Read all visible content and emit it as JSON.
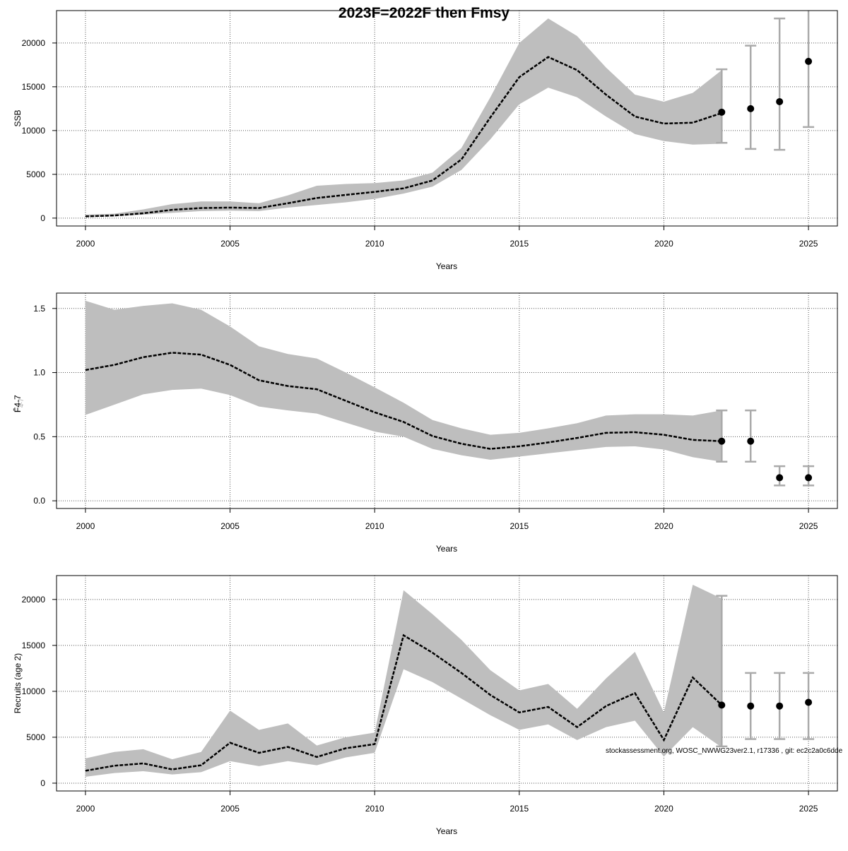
{
  "title": "2023F=2022F then Fmsy",
  "footnote": "stockassessment.org, WOSC_NWWG23ver2.1, r17336 , git: ec2c2a0c6dde",
  "chart_data": [
    {
      "type": "line",
      "ylabel": "SSB",
      "xlabel": "Years",
      "xlim": [
        1999,
        2026
      ],
      "ylim": [
        -900,
        23700
      ],
      "xticks": [
        2000,
        2005,
        2010,
        2015,
        2020,
        2025
      ],
      "yticks": [
        0,
        5000,
        10000,
        15000,
        20000
      ],
      "x": [
        2000,
        2001,
        2002,
        2003,
        2004,
        2005,
        2006,
        2007,
        2008,
        2009,
        2010,
        2011,
        2012,
        2013,
        2014,
        2015,
        2016,
        2017,
        2018,
        2019,
        2020,
        2021,
        2022
      ],
      "estimate": [
        200,
        300,
        550,
        950,
        1150,
        1200,
        1150,
        1700,
        2300,
        2650,
        3000,
        3400,
        4300,
        6700,
        11500,
        16100,
        18400,
        16900,
        14100,
        11600,
        10800,
        10900,
        12000
      ],
      "lower": [
        100,
        200,
        400,
        600,
        800,
        850,
        800,
        1200,
        1500,
        1800,
        2200,
        2800,
        3600,
        5500,
        9000,
        13000,
        14900,
        13800,
        11600,
        9600,
        8800,
        8400,
        8500
      ],
      "upper": [
        400,
        500,
        1000,
        1600,
        1900,
        1900,
        1700,
        2600,
        3700,
        3900,
        4000,
        4300,
        5200,
        8000,
        13800,
        20000,
        22800,
        20800,
        17200,
        14100,
        13300,
        14300,
        16900
      ],
      "forecast": [
        {
          "year": 2022,
          "value": 12100,
          "low": 8600,
          "high": 17000
        },
        {
          "year": 2023,
          "value": 12500,
          "low": 7900,
          "high": 19700
        },
        {
          "year": 2024,
          "value": 13300,
          "low": 7800,
          "high": 22800
        },
        {
          "year": 2025,
          "value": 17900,
          "low": 10400,
          "high": 25000
        }
      ]
    },
    {
      "type": "line",
      "ylabel": "F̄4-7",
      "ylabel_main": "F",
      "ylabel_sub": "4-7",
      "xlabel": "Years",
      "xlim": [
        1999,
        2026
      ],
      "ylim": [
        -0.06,
        1.62
      ],
      "xticks": [
        2000,
        2005,
        2010,
        2015,
        2020,
        2025
      ],
      "yticks": [
        0.0,
        0.5,
        1.0,
        1.5
      ],
      "ytick_labels": [
        "0.0",
        "0.5",
        "1.0",
        "1.5"
      ],
      "x": [
        2000,
        2001,
        2002,
        2003,
        2004,
        2005,
        2006,
        2007,
        2008,
        2009,
        2010,
        2011,
        2012,
        2013,
        2014,
        2015,
        2016,
        2017,
        2018,
        2019,
        2020,
        2021,
        2022
      ],
      "estimate": [
        1.02,
        1.06,
        1.12,
        1.155,
        1.14,
        1.06,
        0.94,
        0.895,
        0.87,
        0.78,
        0.69,
        0.615,
        0.505,
        0.445,
        0.405,
        0.425,
        0.455,
        0.49,
        0.53,
        0.535,
        0.515,
        0.475,
        0.465
      ],
      "lower": [
        0.67,
        0.75,
        0.83,
        0.865,
        0.875,
        0.825,
        0.735,
        0.705,
        0.68,
        0.61,
        0.54,
        0.5,
        0.405,
        0.355,
        0.32,
        0.345,
        0.37,
        0.395,
        0.42,
        0.425,
        0.4,
        0.34,
        0.305
      ],
      "upper": [
        1.56,
        1.49,
        1.52,
        1.54,
        1.49,
        1.36,
        1.205,
        1.145,
        1.11,
        1.0,
        0.885,
        0.765,
        0.63,
        0.565,
        0.515,
        0.53,
        0.565,
        0.605,
        0.665,
        0.675,
        0.675,
        0.665,
        0.705
      ],
      "forecast": [
        {
          "year": 2022,
          "value": 0.465,
          "low": 0.305,
          "high": 0.705
        },
        {
          "year": 2023,
          "value": 0.465,
          "low": 0.305,
          "high": 0.705
        },
        {
          "year": 2024,
          "value": 0.18,
          "low": 0.12,
          "high": 0.27
        },
        {
          "year": 2025,
          "value": 0.18,
          "low": 0.12,
          "high": 0.27
        }
      ]
    },
    {
      "type": "line",
      "ylabel": "Recruits (age 2)",
      "xlabel": "Years",
      "xlim": [
        1999,
        2026
      ],
      "ylim": [
        -850,
        22600
      ],
      "xticks": [
        2000,
        2005,
        2010,
        2015,
        2020,
        2025
      ],
      "yticks": [
        0,
        5000,
        10000,
        15000,
        20000
      ],
      "x": [
        2000,
        2001,
        2002,
        2003,
        2004,
        2005,
        2006,
        2007,
        2008,
        2009,
        2010,
        2011,
        2012,
        2013,
        2014,
        2015,
        2016,
        2017,
        2018,
        2019,
        2020,
        2021,
        2022
      ],
      "estimate": [
        1350,
        1900,
        2150,
        1500,
        1950,
        4400,
        3300,
        3950,
        2850,
        3800,
        4250,
        16100,
        14200,
        12000,
        9600,
        7700,
        8300,
        6100,
        8400,
        9800,
        4700,
        11500,
        8500
      ],
      "lower": [
        700,
        1100,
        1300,
        950,
        1200,
        2400,
        1850,
        2400,
        1950,
        2800,
        3300,
        12400,
        11000,
        9200,
        7400,
        5800,
        6400,
        4700,
        6100,
        6800,
        2900,
        6100,
        3900
      ],
      "upper": [
        2700,
        3400,
        3700,
        2600,
        3400,
        7900,
        5800,
        6500,
        4100,
        5000,
        5500,
        21000,
        18400,
        15600,
        12300,
        10100,
        10800,
        8100,
        11400,
        14300,
        7700,
        21600,
        20100
      ],
      "forecast": [
        {
          "year": 2022,
          "value": 8500,
          "low": 4000,
          "high": 20400
        },
        {
          "year": 2023,
          "value": 8400,
          "low": 4800,
          "high": 12000
        },
        {
          "year": 2024,
          "value": 8400,
          "low": 4800,
          "high": 12000
        },
        {
          "year": 2025,
          "value": 8800,
          "low": 4800,
          "high": 12000
        }
      ]
    }
  ]
}
